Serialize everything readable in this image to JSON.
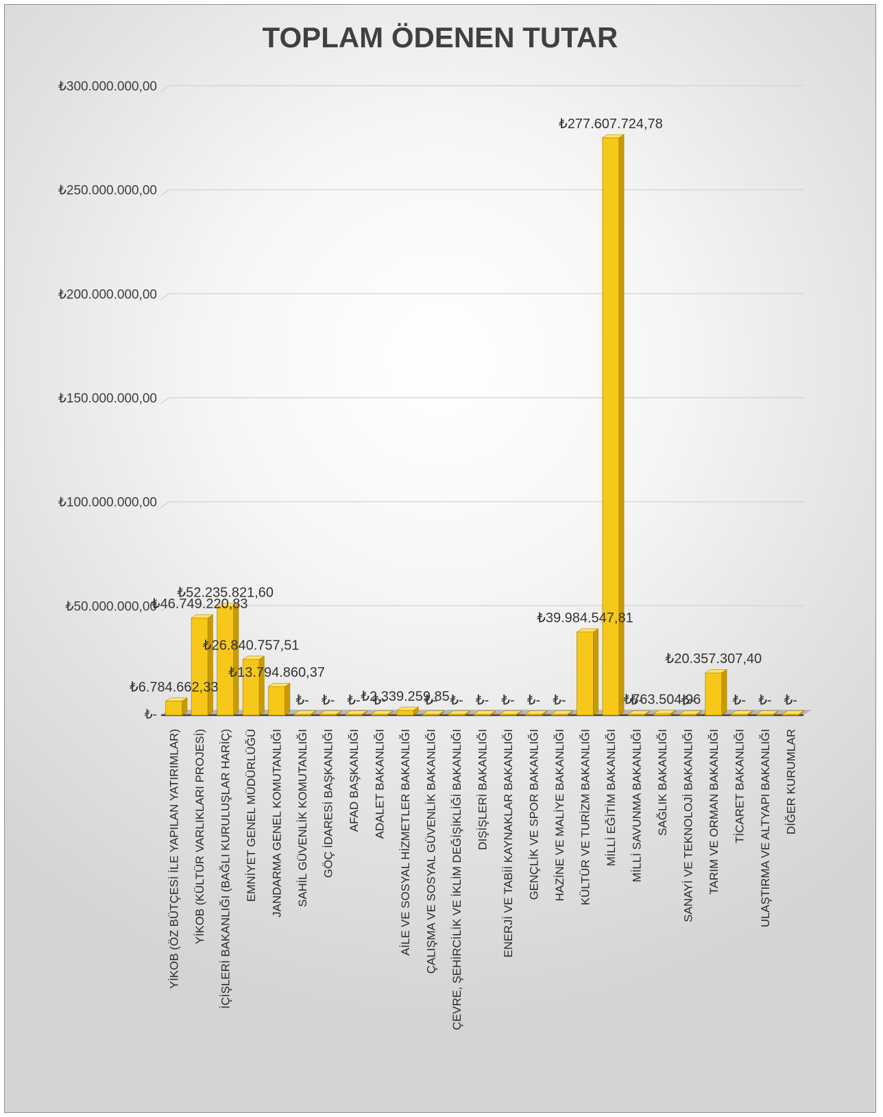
{
  "chart_data": {
    "type": "bar",
    "title": "TOPLAM ÖDENEN TUTAR",
    "xlabel": "",
    "ylabel": "",
    "ylim": [
      0,
      300000000
    ],
    "grid": true,
    "legend": "none",
    "bar_color": "#f5c518",
    "yticks": [
      {
        "value": 0,
        "label": "₺-"
      },
      {
        "value": 50000000,
        "label": "₺50.000.000,00"
      },
      {
        "value": 100000000,
        "label": "₺100.000.000,00"
      },
      {
        "value": 150000000,
        "label": "₺150.000.000,00"
      },
      {
        "value": 200000000,
        "label": "₺200.000.000,00"
      },
      {
        "value": 250000000,
        "label": "₺250.000.000,00"
      },
      {
        "value": 300000000,
        "label": "₺300.000.000,00"
      }
    ],
    "categories": [
      "YİKOB (ÖZ BÜTÇESİ İLE YAPILAN YATIRIMLAR)",
      "YİKOB (KÜLTÜR VARLIKLARI PROJESİ)",
      "İÇİŞLERİ BAKANLIĞI (BAĞLI KURULUŞLAR HARİÇ)",
      "EMNİYET GENEL MÜDÜRLÜĞÜ",
      "JANDARMA GENEL KOMUTANLIĞI",
      "SAHİL GÜVENLİK KOMUTANLIĞI",
      "GÖÇ İDARESİ BAŞKANLIĞI",
      "AFAD BAŞKANLIĞI",
      "ADALET BAKANLIĞI",
      "AİLE VE SOSYAL HİZMETLER BAKANLIĞI",
      "ÇALIŞMA VE SOSYAL GÜVENLİK BAKANLIĞI",
      "ÇEVRE, ŞEHİRCİLİK VE İKLİM DEĞİŞİKLİĞİ BAKANLIĞI",
      "DIŞİŞLERİ BAKANLIĞI",
      "ENERJİ VE TABİİ KAYNAKLAR BAKANLIĞI",
      "GENÇLİK VE SPOR BAKANLIĞI",
      "HAZİNE VE MALİYE BAKANLIĞI",
      "KÜLTÜR VE TURİZM BAKANLIĞI",
      "MİLLİ EĞİTİM BAKANLIĞI",
      "MİLLİ SAVUNMA BAKANLIĞI",
      "SAĞLIK BAKANLIĞI",
      "SANAYİ VE TEKNOLOJİ BAKANLIĞI",
      "TARIM VE ORMAN BAKANLIĞI",
      "TİCARET BAKANLIĞI",
      "ULAŞTIRMA VE ALTYAPI BAKANLIĞI",
      "DİĞER KURUMLAR"
    ],
    "values": [
      6784662.33,
      46749220.83,
      52235821.6,
      26840757.51,
      13794860.37,
      0,
      0,
      0,
      0,
      2339259.85,
      0,
      0,
      0,
      0,
      0,
      0,
      39984547.81,
      277607724.78,
      0,
      763504.96,
      0,
      20357307.4,
      0,
      0,
      0
    ],
    "data_labels": [
      "₺6.784.662,33",
      "₺46.749.220,83",
      "₺52.235.821,60",
      "₺26.840.757,51",
      "₺13.794.860,37",
      "₺-",
      "₺-",
      "₺-",
      "₺-",
      "₺2.339.259,85",
      "₺-",
      "₺-",
      "₺-",
      "₺-",
      "₺-",
      "₺-",
      "₺39.984.547,81",
      "₺277.607.724,78",
      "₺-",
      "₺763.504,96",
      "₺-",
      "₺20.357.307,40",
      "₺-",
      "₺-",
      "₺-"
    ]
  }
}
